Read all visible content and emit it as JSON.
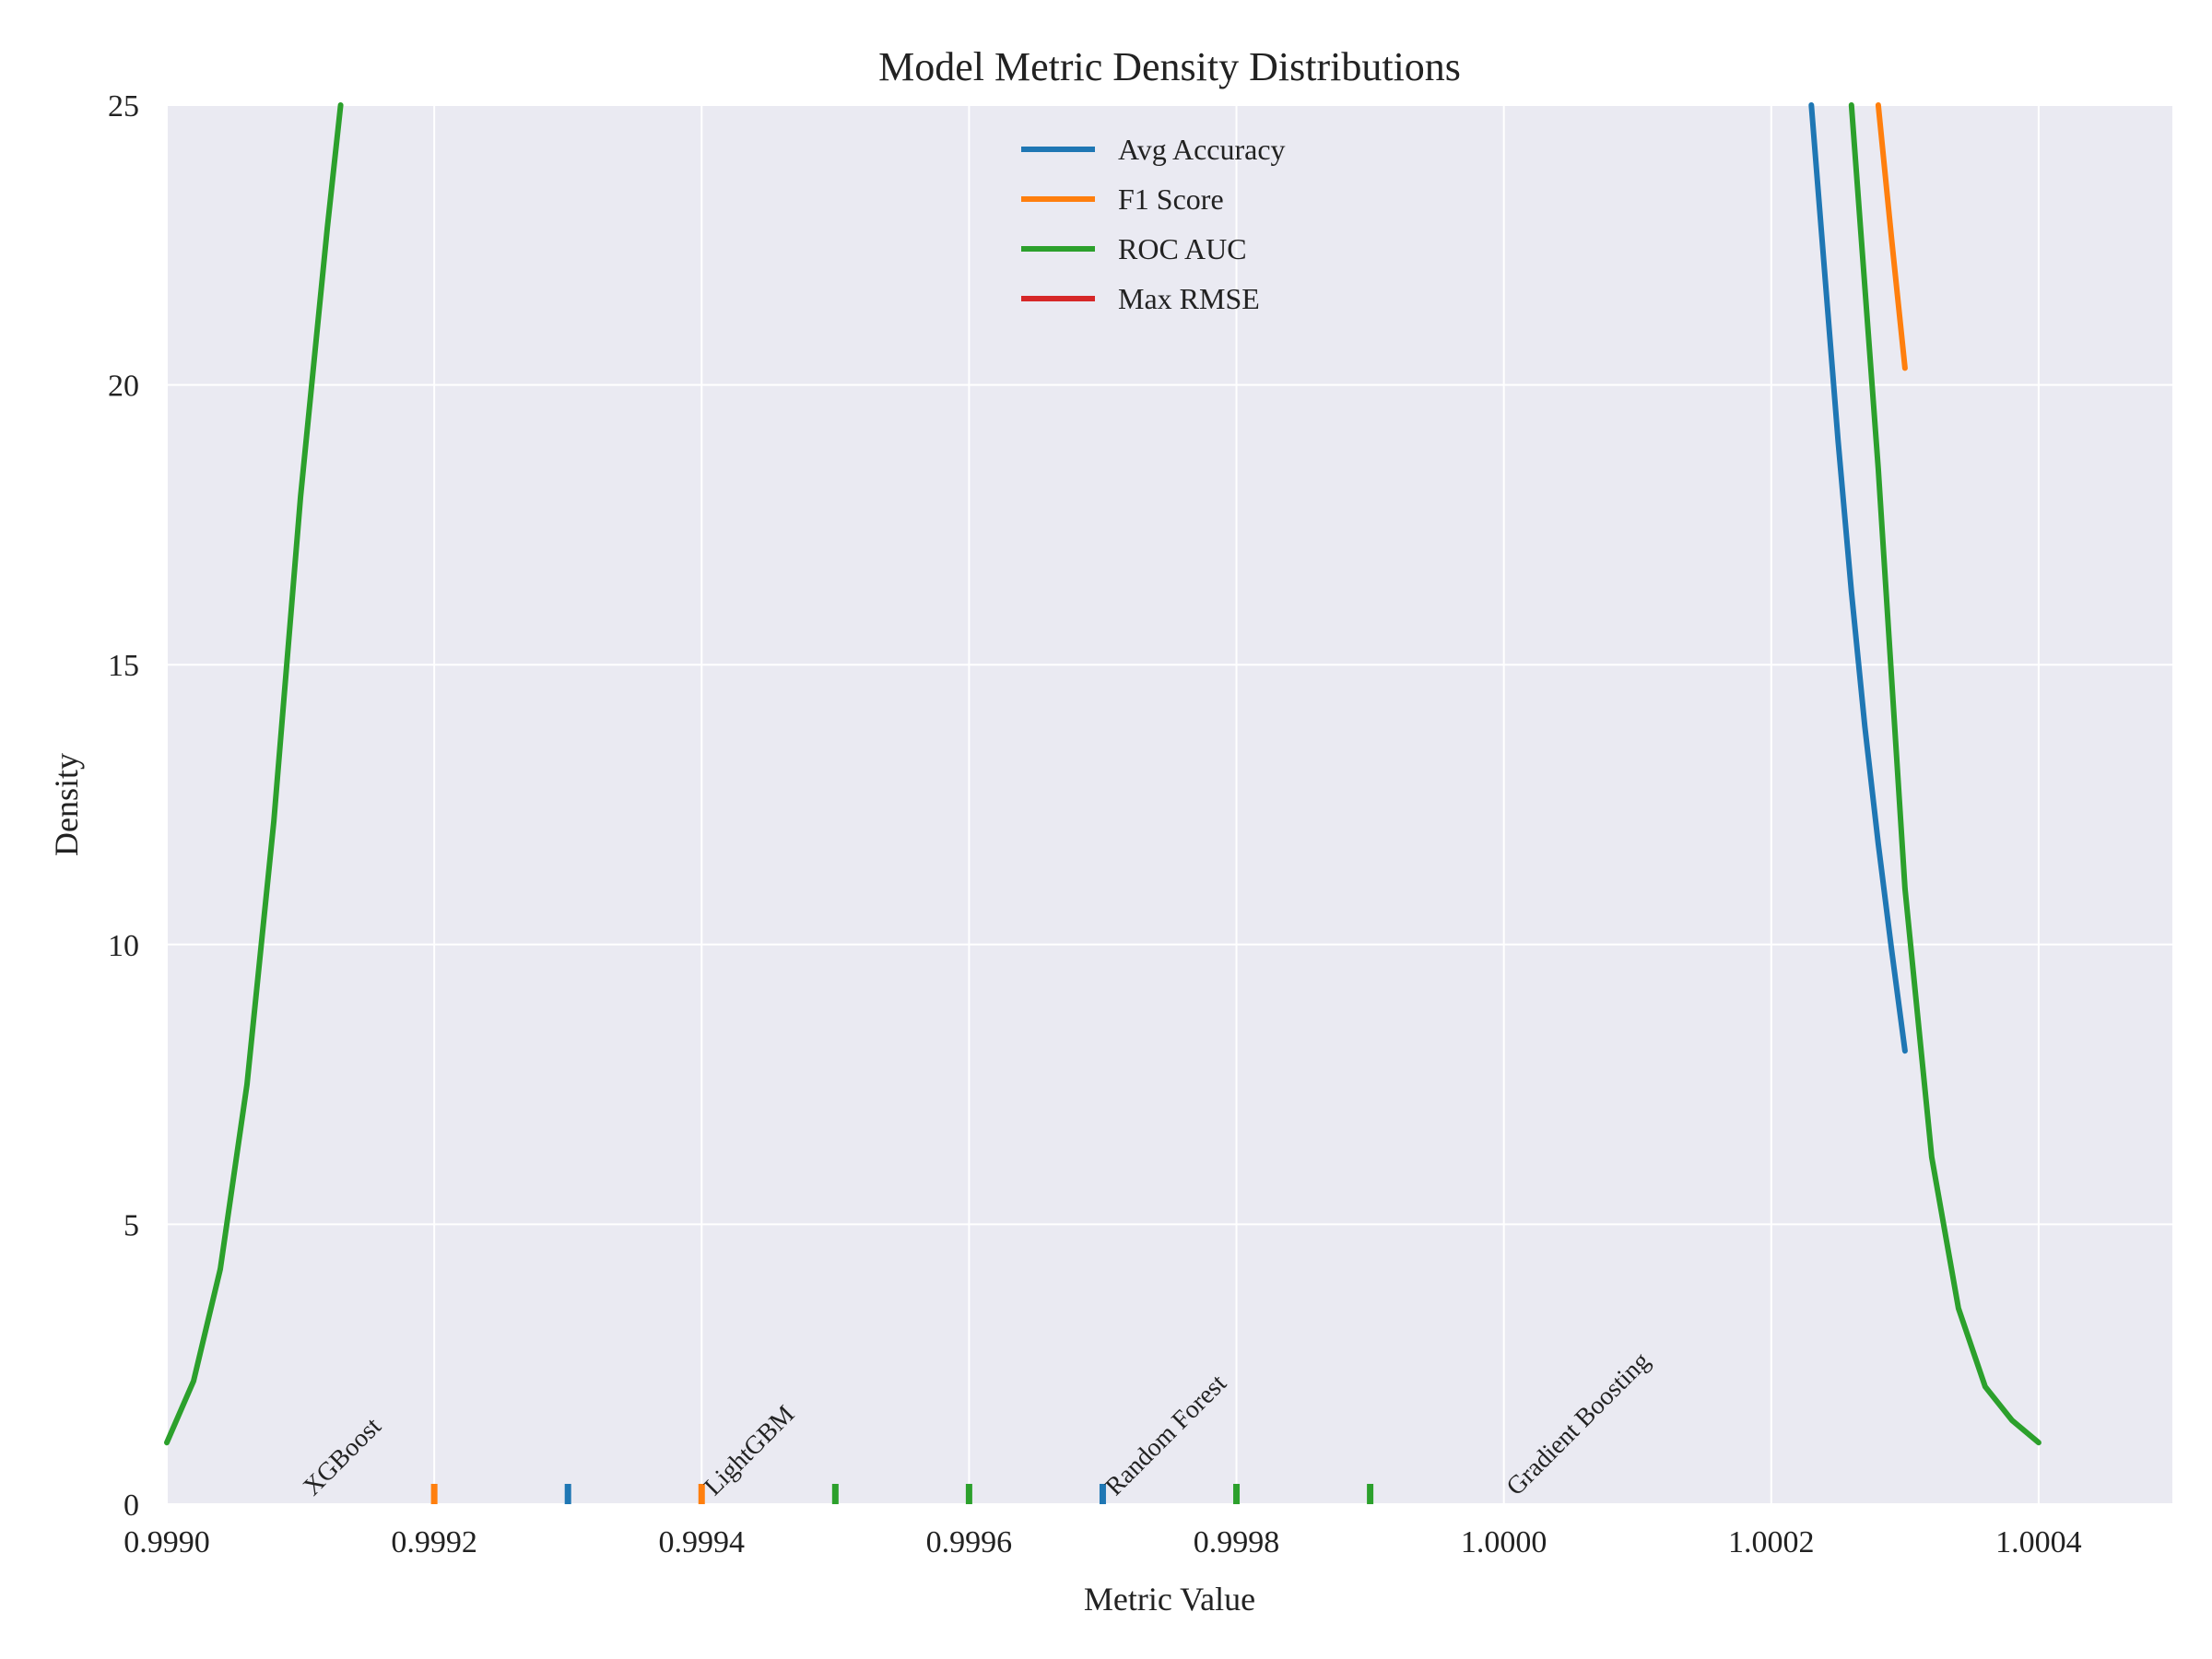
{
  "chart_data": {
    "type": "line",
    "title": "Model Metric Density Distributions",
    "xlabel": "Metric Value",
    "ylabel": "Density",
    "xlim": [
      0.999,
      1.0005
    ],
    "ylim": [
      0,
      25
    ],
    "grid": true,
    "legend_position": "top-center",
    "x_ticks": [
      "0.9990",
      "0.9992",
      "0.9994",
      "0.9996",
      "0.9998",
      "1.0000",
      "1.0002",
      "1.0004"
    ],
    "x_tick_values": [
      0.999,
      0.9992,
      0.9994,
      0.9996,
      0.9998,
      1.0,
      1.0002,
      1.0004
    ],
    "y_ticks": [
      "0",
      "5",
      "10",
      "15",
      "20",
      "25"
    ],
    "y_tick_values": [
      0,
      5,
      10,
      15,
      20,
      25
    ],
    "series": [
      {
        "name": "Avg Accuracy",
        "color": "#1f77b4",
        "x": [
          1.00023,
          1.00024,
          1.00025,
          1.00026,
          1.00027,
          1.00028,
          1.00029,
          1.0003
        ],
        "y": [
          25.0,
          22.0,
          19.0,
          16.3,
          13.9,
          11.8,
          9.9,
          8.1
        ],
        "rug": [
          0.9993,
          0.9997
        ]
      },
      {
        "name": "F1 Score",
        "color": "#ff7f0e",
        "x": [
          1.00028,
          1.00029,
          1.0003
        ],
        "y": [
          25.0,
          22.6,
          20.3
        ],
        "rug": [
          0.9992,
          0.9994
        ]
      },
      {
        "name": "ROC AUC",
        "color": "#2ca02c",
        "x": [
          0.999,
          0.99902,
          0.99904,
          0.99906,
          0.99908,
          0.9991,
          0.99912,
          0.99913,
          1.00026,
          1.00028,
          1.0003,
          1.00032,
          1.00034,
          1.00036,
          1.00038,
          1.0004
        ],
        "y": [
          1.1,
          2.2,
          4.2,
          7.5,
          12.2,
          18.0,
          22.8,
          25.0,
          25.0,
          18.5,
          11.0,
          6.2,
          3.5,
          2.1,
          1.5,
          1.1
        ],
        "segments": [
          [
            0,
            7
          ],
          [
            8,
            15
          ]
        ],
        "rug": [
          0.9995,
          0.9996,
          0.9998,
          0.9999
        ]
      },
      {
        "name": "Max RMSE",
        "color": "#d62728",
        "x": [],
        "y": [],
        "rug": []
      }
    ],
    "annotations": [
      {
        "text": "XGBoost",
        "x": 0.9991
      },
      {
        "text": "LightGBM",
        "x": 0.9994
      },
      {
        "text": "Random Forest",
        "x": 0.9997
      },
      {
        "text": "Gradient Boosting",
        "x": 1.0
      }
    ]
  }
}
